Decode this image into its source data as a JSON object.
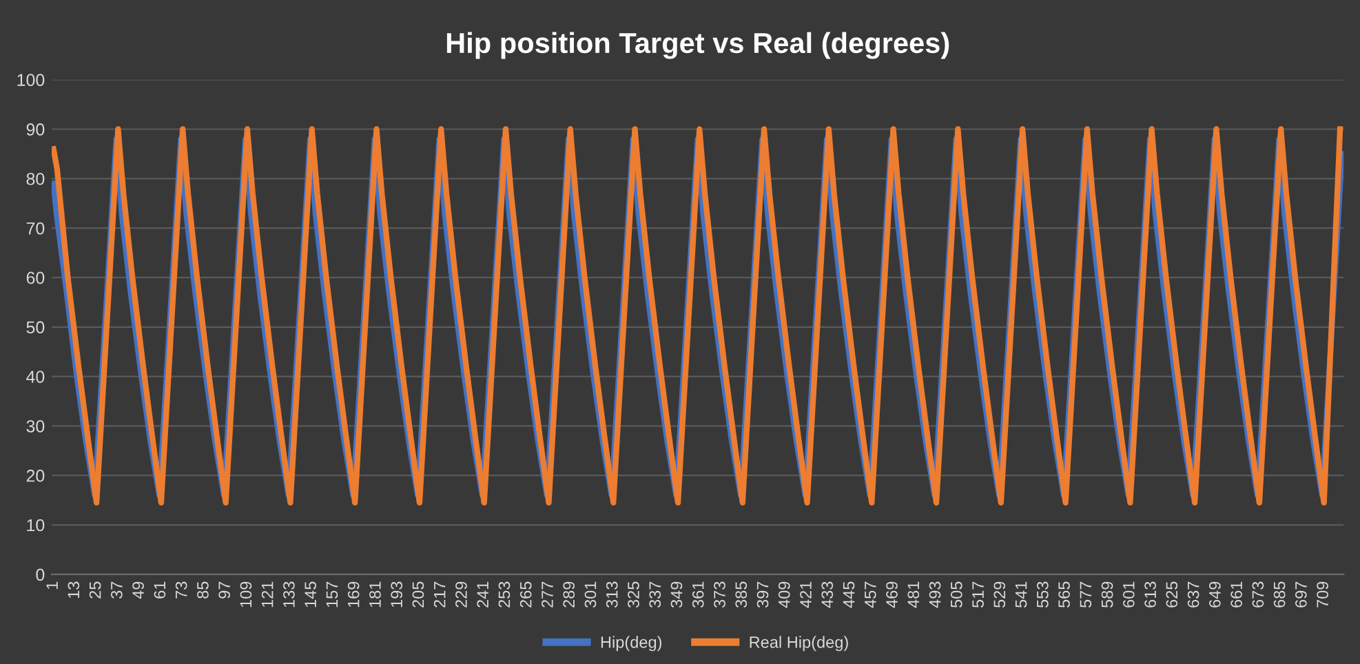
{
  "chart_data": {
    "type": "line",
    "title": "Hip position Target vs Real (degrees)",
    "xlim": [
      0,
      720
    ],
    "xticks": [
      1,
      13,
      25,
      37,
      49,
      61,
      73,
      85,
      97,
      109,
      121,
      133,
      145,
      157,
      169,
      181,
      193,
      205,
      217,
      229,
      241,
      253,
      265,
      277,
      289,
      301,
      313,
      325,
      337,
      349,
      361,
      373,
      385,
      397,
      409,
      421,
      433,
      445,
      457,
      469,
      481,
      493,
      505,
      517,
      529,
      541,
      553,
      565,
      577,
      589,
      601,
      613,
      625,
      637,
      649,
      661,
      673,
      685,
      697,
      709
    ],
    "ylim": [
      0,
      100
    ],
    "yticks": [
      0,
      10,
      20,
      30,
      40,
      50,
      60,
      70,
      80,
      90,
      100
    ],
    "grid": "y",
    "legend": "bottom",
    "marker": "none",
    "line_style": "solid",
    "series": [
      {
        "name": "Hip(deg)",
        "color": "#4472c4",
        "x": [
          1,
          3,
          8,
          14,
          19,
          24,
          36,
          39,
          44,
          50,
          55,
          60,
          72,
          75,
          80,
          86,
          91,
          96,
          108,
          111,
          116,
          122,
          127,
          132,
          144,
          147,
          152,
          158,
          163,
          168,
          180,
          183,
          188,
          194,
          199,
          204,
          216,
          219,
          224,
          230,
          235,
          240,
          252,
          255,
          260,
          266,
          271,
          276,
          288,
          291,
          296,
          302,
          307,
          312,
          324,
          327,
          332,
          338,
          343,
          348,
          360,
          363,
          368,
          374,
          379,
          384,
          396,
          399,
          404,
          410,
          415,
          420,
          432,
          435,
          440,
          446,
          451,
          456,
          468,
          471,
          476,
          482,
          487,
          492,
          504,
          507,
          512,
          518,
          523,
          528,
          540,
          543,
          548,
          554,
          559,
          564,
          576,
          579,
          584,
          590,
          595,
          600,
          612,
          615,
          620,
          626,
          631,
          636,
          648,
          651,
          656,
          662,
          667,
          672,
          684,
          687,
          692,
          698,
          703,
          708,
          719
        ],
        "values": [
          79,
          72,
          58,
          40,
          27,
          16,
          88,
          73,
          57,
          40,
          27,
          16,
          88,
          73,
          57,
          40,
          27,
          16,
          88,
          73,
          57,
          40,
          27,
          16,
          88,
          73,
          57,
          40,
          27,
          16,
          88,
          73,
          57,
          40,
          27,
          16,
          88,
          73,
          57,
          40,
          27,
          16,
          88,
          73,
          57,
          40,
          27,
          16,
          88,
          73,
          57,
          40,
          27,
          16,
          88,
          73,
          57,
          40,
          27,
          16,
          88,
          73,
          57,
          40,
          27,
          16,
          88,
          73,
          57,
          40,
          27,
          16,
          88,
          73,
          57,
          40,
          27,
          16,
          88,
          73,
          57,
          40,
          27,
          16,
          88,
          73,
          57,
          40,
          27,
          16,
          88,
          73,
          57,
          40,
          27,
          16,
          88,
          73,
          57,
          40,
          27,
          16,
          88,
          73,
          57,
          40,
          27,
          16,
          88,
          73,
          57,
          40,
          27,
          16,
          88,
          73,
          57,
          40,
          27,
          16,
          85
        ]
      },
      {
        "name": "Real Hip(deg)",
        "color": "#ed7d31",
        "x": [
          1,
          3,
          9,
          15,
          20,
          25,
          37,
          40,
          45,
          51,
          56,
          61,
          73,
          76,
          81,
          87,
          92,
          97,
          109,
          112,
          117,
          123,
          128,
          133,
          145,
          148,
          153,
          159,
          164,
          169,
          181,
          184,
          189,
          195,
          200,
          205,
          217,
          220,
          225,
          231,
          236,
          241,
          253,
          256,
          261,
          267,
          272,
          277,
          289,
          292,
          297,
          303,
          308,
          313,
          325,
          328,
          333,
          339,
          344,
          349,
          361,
          364,
          369,
          375,
          380,
          385,
          397,
          400,
          405,
          411,
          416,
          421,
          433,
          436,
          441,
          447,
          452,
          457,
          469,
          472,
          477,
          483,
          488,
          493,
          505,
          508,
          513,
          519,
          524,
          529,
          541,
          544,
          549,
          555,
          560,
          565,
          577,
          580,
          585,
          591,
          596,
          601,
          613,
          616,
          621,
          627,
          632,
          637,
          649,
          652,
          657,
          663,
          668,
          673,
          685,
          688,
          693,
          699,
          704,
          709,
          718
        ],
        "values": [
          86,
          82,
          60,
          42,
          28,
          14.5,
          90,
          77,
          60,
          42,
          28,
          14.5,
          90,
          77,
          60,
          42,
          28,
          14.5,
          90,
          77,
          60,
          42,
          28,
          14.5,
          90,
          77,
          60,
          42,
          28,
          14.5,
          90,
          77,
          60,
          42,
          28,
          14.5,
          90,
          77,
          60,
          42,
          28,
          14.5,
          90,
          77,
          60,
          42,
          28,
          14.5,
          90,
          77,
          60,
          42,
          28,
          14.5,
          90,
          77,
          60,
          42,
          28,
          14.5,
          90,
          77,
          60,
          42,
          28,
          14.5,
          90,
          77,
          60,
          42,
          28,
          14.5,
          90,
          77,
          60,
          42,
          28,
          14.5,
          90,
          77,
          60,
          42,
          28,
          14.5,
          90,
          77,
          60,
          42,
          28,
          14.5,
          90,
          77,
          60,
          42,
          28,
          14.5,
          90,
          77,
          60,
          42,
          28,
          14.5,
          90,
          77,
          60,
          42,
          28,
          14.5,
          90,
          77,
          60,
          42,
          28,
          14.5,
          90,
          77,
          60,
          42,
          28,
          14.5,
          90
        ]
      }
    ]
  }
}
